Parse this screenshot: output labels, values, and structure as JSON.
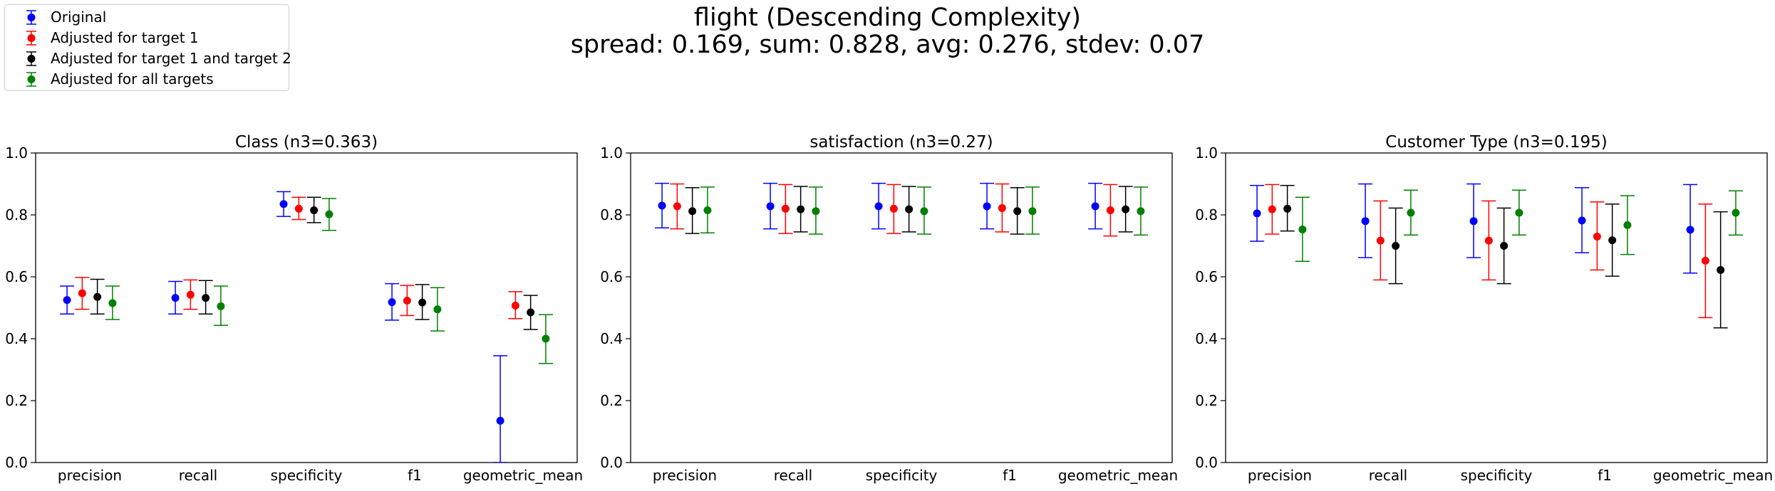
{
  "figure": {
    "title": "flight (Descending Complexity)",
    "subtitle": "spread: 0.169, sum: 0.828, avg: 0.276, stdev: 0.07"
  },
  "legend": [
    {
      "label": "Original",
      "color": "#0000ff"
    },
    {
      "label": "Adjusted for target 1",
      "color": "#ff0000"
    },
    {
      "label": "Adjusted for target 1 and target 2",
      "color": "#000000"
    },
    {
      "label": "Adjusted for all targets",
      "color": "#008000"
    }
  ],
  "chart_data": [
    {
      "type": "scatter",
      "error_bars": true,
      "title": "Class (n3=0.363)",
      "categories": [
        "precision",
        "recall",
        "specificity",
        "f1",
        "geometric_mean"
      ],
      "ylim": [
        0,
        1
      ],
      "yticks": [
        "0.0",
        "0.2",
        "0.4",
        "0.6",
        "0.8",
        "1.0"
      ],
      "series": [
        {
          "name": "Original",
          "color": "#0000ff",
          "values": [
            0.525,
            0.532,
            0.835,
            0.518,
            0.135
          ],
          "lower": [
            0.48,
            0.48,
            0.795,
            0.46,
            0.0
          ],
          "upper": [
            0.57,
            0.585,
            0.875,
            0.578,
            0.345
          ]
        },
        {
          "name": "Adjusted for target 1",
          "color": "#ff0000",
          "values": [
            0.547,
            0.542,
            0.82,
            0.523,
            0.507
          ],
          "lower": [
            0.495,
            0.495,
            0.785,
            0.475,
            0.465
          ],
          "upper": [
            0.598,
            0.59,
            0.857,
            0.572,
            0.552
          ]
        },
        {
          "name": "Adjusted for target 1 and target 2",
          "color": "#000000",
          "values": [
            0.535,
            0.532,
            0.815,
            0.517,
            0.485
          ],
          "lower": [
            0.48,
            0.48,
            0.775,
            0.462,
            0.43
          ],
          "upper": [
            0.592,
            0.588,
            0.857,
            0.575,
            0.54
          ]
        },
        {
          "name": "Adjusted for all targets",
          "color": "#008000",
          "values": [
            0.515,
            0.505,
            0.802,
            0.495,
            0.4
          ],
          "lower": [
            0.462,
            0.443,
            0.75,
            0.425,
            0.32
          ],
          "upper": [
            0.57,
            0.57,
            0.853,
            0.565,
            0.478
          ]
        }
      ]
    },
    {
      "type": "scatter",
      "error_bars": true,
      "title": "satisfaction (n3=0.27)",
      "categories": [
        "precision",
        "recall",
        "specificity",
        "f1",
        "geometric_mean"
      ],
      "ylim": [
        0,
        1
      ],
      "yticks": [
        "0.0",
        "0.2",
        "0.4",
        "0.6",
        "0.8",
        "1.0"
      ],
      "series": [
        {
          "name": "Original",
          "color": "#0000ff",
          "values": [
            0.83,
            0.828,
            0.828,
            0.828,
            0.828
          ],
          "lower": [
            0.758,
            0.755,
            0.755,
            0.755,
            0.755
          ],
          "upper": [
            0.902,
            0.902,
            0.902,
            0.902,
            0.902
          ]
        },
        {
          "name": "Adjusted for target 1",
          "color": "#ff0000",
          "values": [
            0.828,
            0.82,
            0.82,
            0.822,
            0.815
          ],
          "lower": [
            0.755,
            0.74,
            0.74,
            0.745,
            0.732
          ],
          "upper": [
            0.9,
            0.898,
            0.898,
            0.9,
            0.898
          ]
        },
        {
          "name": "Adjusted for target 1 and target 2",
          "color": "#000000",
          "values": [
            0.812,
            0.818,
            0.818,
            0.812,
            0.818
          ],
          "lower": [
            0.74,
            0.745,
            0.745,
            0.738,
            0.745
          ],
          "upper": [
            0.888,
            0.892,
            0.892,
            0.888,
            0.892
          ]
        },
        {
          "name": "Adjusted for all targets",
          "color": "#008000",
          "values": [
            0.815,
            0.812,
            0.812,
            0.812,
            0.812
          ],
          "lower": [
            0.742,
            0.738,
            0.738,
            0.738,
            0.735
          ],
          "upper": [
            0.89,
            0.89,
            0.89,
            0.89,
            0.89
          ]
        }
      ]
    },
    {
      "type": "scatter",
      "error_bars": true,
      "title": "Customer Type (n3=0.195)",
      "categories": [
        "precision",
        "recall",
        "specificity",
        "f1",
        "geometric_mean"
      ],
      "ylim": [
        0,
        1
      ],
      "yticks": [
        "0.0",
        "0.2",
        "0.4",
        "0.6",
        "0.8",
        "1.0"
      ],
      "series": [
        {
          "name": "Original",
          "color": "#0000ff",
          "values": [
            0.805,
            0.78,
            0.78,
            0.782,
            0.752
          ],
          "lower": [
            0.715,
            0.662,
            0.662,
            0.678,
            0.612
          ],
          "upper": [
            0.895,
            0.9,
            0.9,
            0.888,
            0.898
          ]
        },
        {
          "name": "Adjusted for target 1",
          "color": "#ff0000",
          "values": [
            0.818,
            0.717,
            0.717,
            0.73,
            0.652
          ],
          "lower": [
            0.738,
            0.59,
            0.59,
            0.622,
            0.468
          ],
          "upper": [
            0.898,
            0.845,
            0.845,
            0.842,
            0.835
          ]
        },
        {
          "name": "Adjusted for target 1 and target 2",
          "color": "#000000",
          "values": [
            0.82,
            0.7,
            0.7,
            0.718,
            0.622
          ],
          "lower": [
            0.748,
            0.578,
            0.578,
            0.602,
            0.435
          ],
          "upper": [
            0.895,
            0.822,
            0.822,
            0.835,
            0.81
          ]
        },
        {
          "name": "Adjusted for all targets",
          "color": "#008000",
          "values": [
            0.753,
            0.807,
            0.807,
            0.767,
            0.807
          ],
          "lower": [
            0.65,
            0.735,
            0.735,
            0.672,
            0.735
          ],
          "upper": [
            0.857,
            0.88,
            0.88,
            0.862,
            0.878
          ]
        }
      ]
    }
  ]
}
